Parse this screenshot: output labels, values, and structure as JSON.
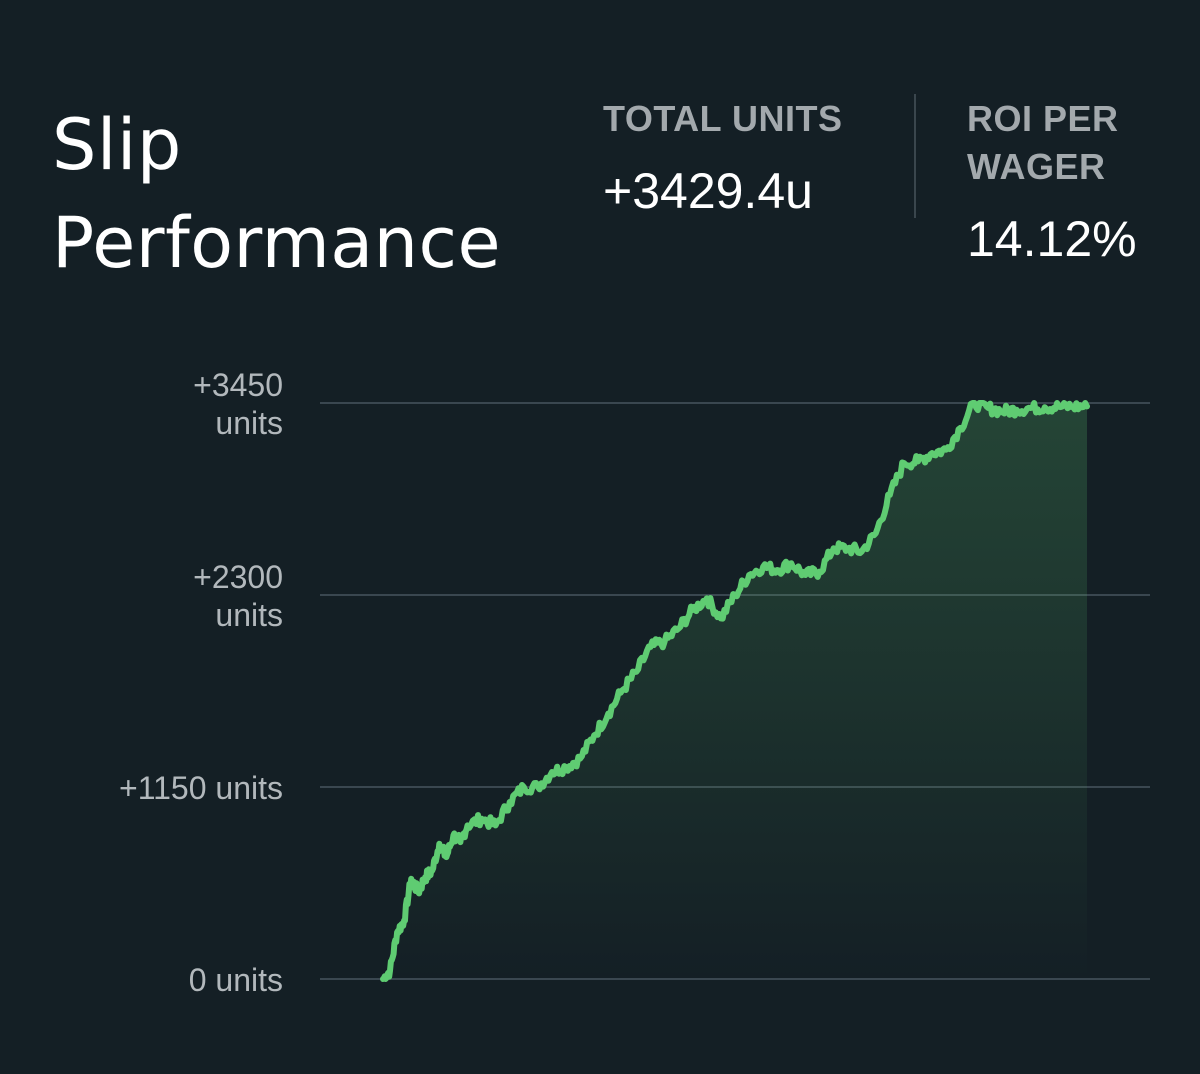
{
  "header": {
    "title": "Slip Performance",
    "stats": [
      {
        "label": "TOTAL UNITS",
        "value": "+3429.4u"
      },
      {
        "label": "ROI PER WAGER",
        "value": "14.12%"
      }
    ]
  },
  "colors": {
    "background": "#141f25",
    "line": "#5fcc72",
    "grid": "#3a4750",
    "label": "#b2b8bc"
  },
  "chart_data": {
    "type": "area",
    "ylim": [
      0,
      3450
    ],
    "yticks": [
      {
        "value": 0,
        "lines": [
          "0 units"
        ]
      },
      {
        "value": 1150,
        "lines": [
          "+1150 units"
        ]
      },
      {
        "value": 2300,
        "lines": [
          "+2300",
          "units"
        ]
      },
      {
        "value": 3450,
        "lines": [
          "+3450",
          "units"
        ]
      }
    ],
    "grid": true,
    "legend": "none",
    "series": [
      {
        "x": [
          0,
          1,
          2,
          3,
          4,
          5,
          6,
          7,
          8,
          9,
          10,
          11,
          12,
          14,
          16,
          18,
          20,
          22,
          24,
          26,
          28,
          30,
          32,
          34,
          36,
          38,
          40,
          42,
          44,
          46,
          48,
          50,
          52,
          54,
          56,
          58,
          60,
          62,
          64,
          66,
          68,
          70,
          72,
          74,
          76,
          78,
          80,
          82,
          84,
          86,
          88,
          90,
          92,
          94,
          96,
          98,
          100
        ],
        "y": [
          0,
          50,
          280,
          350,
          600,
          520,
          610,
          650,
          810,
          730,
          860,
          820,
          920,
          960,
          920,
          1060,
          1150,
          1150,
          1240,
          1270,
          1320,
          1460,
          1590,
          1730,
          1840,
          1990,
          2020,
          2100,
          2210,
          2280,
          2160,
          2300,
          2420,
          2470,
          2450,
          2490,
          2420,
          2440,
          2580,
          2580,
          2560,
          2670,
          2900,
          3090,
          3100,
          3150,
          3170,
          3300,
          3450,
          3420,
          3400,
          3410,
          3420,
          3425,
          3428,
          3429,
          3429.4
        ]
      }
    ]
  }
}
